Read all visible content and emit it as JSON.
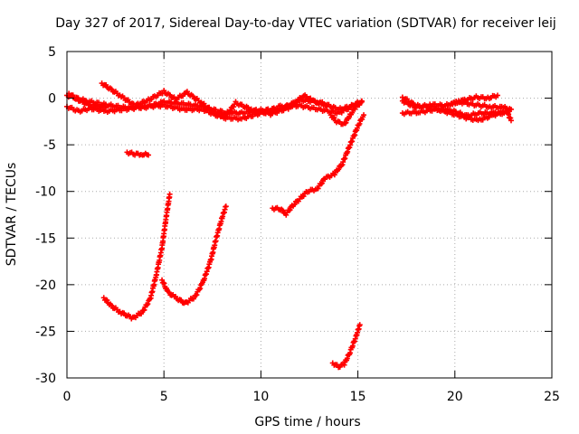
{
  "chart_data": {
    "type": "scatter",
    "title": "Day 327 of 2017, Sidereal Day-to-day VTEC variation (SDTVAR) for receiver leij",
    "xlabel": "GPS time / hours",
    "ylabel": "SDTVAR / TECUs",
    "xlim": [
      0,
      25
    ],
    "ylim": [
      -30,
      5
    ],
    "x_ticks": [
      0,
      5,
      10,
      15,
      20,
      25
    ],
    "y_ticks": [
      5,
      0,
      -5,
      -10,
      -15,
      -20,
      -25,
      -30
    ],
    "x_tick_labels": [
      "0",
      "5",
      "10",
      "15",
      "20",
      "25"
    ],
    "y_tick_labels": [
      "5",
      "0",
      "-5",
      "-10",
      "-15",
      "-20",
      "-25",
      "-30"
    ],
    "grid": true,
    "marker_color": "#ff0000",
    "series": [
      {
        "points": [
          [
            0.0,
            0.3
          ],
          [
            1.0,
            -0.3
          ],
          [
            2.0,
            -0.7
          ],
          [
            3.0,
            -1.0
          ],
          [
            4.0,
            -1.0
          ],
          [
            5.0,
            -0.4
          ],
          [
            6.0,
            -0.6
          ],
          [
            7.0,
            -0.9
          ],
          [
            8.0,
            -1.5
          ],
          [
            9.0,
            -1.6
          ],
          [
            10.0,
            -1.3
          ],
          [
            11.0,
            -1.2
          ],
          [
            12.0,
            -0.2
          ],
          [
            13.0,
            -0.4
          ],
          [
            14.0,
            -1.2
          ],
          [
            14.6,
            -0.9
          ],
          [
            15.2,
            -0.3
          ]
        ]
      },
      {
        "points": [
          [
            0.0,
            -0.9
          ],
          [
            0.6,
            -1.4
          ],
          [
            1.2,
            -1.1
          ],
          [
            2.0,
            -1.4
          ],
          [
            3.0,
            -1.2
          ],
          [
            4.0,
            -0.9
          ],
          [
            5.0,
            -0.8
          ],
          [
            6.0,
            -1.2
          ],
          [
            7.0,
            -1.2
          ],
          [
            8.0,
            -2.1
          ],
          [
            9.0,
            -2.2
          ],
          [
            10.0,
            -1.6
          ],
          [
            11.0,
            -0.9
          ],
          [
            12.0,
            -0.8
          ],
          [
            13.0,
            -1.2
          ],
          [
            14.0,
            -1.6
          ],
          [
            15.0,
            -0.6
          ]
        ]
      },
      {
        "points": [
          [
            1.8,
            1.6
          ],
          [
            2.3,
            0.9
          ],
          [
            2.8,
            0.2
          ],
          [
            3.5,
            -0.8
          ],
          [
            4.2,
            -0.2
          ],
          [
            5.0,
            0.7
          ],
          [
            5.6,
            -0.1
          ],
          [
            6.2,
            0.6
          ],
          [
            7.0,
            -0.6
          ],
          [
            7.6,
            -1.6
          ],
          [
            8.2,
            -1.9
          ],
          [
            8.7,
            -0.5
          ],
          [
            9.5,
            -1.2
          ],
          [
            10.5,
            -1.7
          ],
          [
            11.5,
            -1.0
          ],
          [
            12.2,
            0.3
          ],
          [
            12.7,
            -0.3
          ],
          [
            13.4,
            -0.8
          ]
        ]
      },
      {
        "points": [
          [
            0.1,
            0.5
          ],
          [
            0.6,
            -0.2
          ],
          [
            1.2,
            -0.8
          ],
          [
            2.0,
            -1.0
          ]
        ]
      },
      {
        "points": [
          [
            3.1,
            -5.8
          ],
          [
            3.5,
            -6.0
          ],
          [
            3.9,
            -6.0
          ],
          [
            4.2,
            -6.1
          ]
        ]
      },
      {
        "points": [
          [
            1.9,
            -21.4
          ],
          [
            2.3,
            -22.3
          ],
          [
            2.8,
            -23.0
          ],
          [
            3.4,
            -23.6
          ],
          [
            3.9,
            -22.9
          ],
          [
            4.3,
            -21.5
          ],
          [
            4.6,
            -19.0
          ],
          [
            4.9,
            -16.0
          ],
          [
            5.1,
            -13.0
          ],
          [
            5.3,
            -10.3
          ]
        ]
      },
      {
        "points": [
          [
            4.9,
            -19.5
          ],
          [
            5.2,
            -20.8
          ],
          [
            5.6,
            -21.4
          ],
          [
            6.1,
            -22.0
          ],
          [
            6.6,
            -21.3
          ],
          [
            7.0,
            -19.8
          ],
          [
            7.4,
            -17.5
          ],
          [
            7.7,
            -15.0
          ],
          [
            8.0,
            -12.8
          ],
          [
            8.2,
            -11.6
          ]
        ]
      },
      {
        "points": [
          [
            10.6,
            -11.8
          ],
          [
            11.0,
            -11.9
          ],
          [
            11.3,
            -12.4
          ],
          [
            11.6,
            -11.6
          ],
          [
            12.0,
            -10.8
          ],
          [
            12.4,
            -10.0
          ],
          [
            12.9,
            -9.7
          ],
          [
            13.3,
            -8.6
          ],
          [
            13.8,
            -8.1
          ],
          [
            14.2,
            -7.0
          ],
          [
            14.6,
            -5.0
          ],
          [
            15.0,
            -3.0
          ],
          [
            15.3,
            -1.8
          ]
        ]
      },
      {
        "points": [
          [
            13.6,
            -1.8
          ],
          [
            13.9,
            -2.5
          ],
          [
            14.3,
            -2.8
          ],
          [
            14.6,
            -1.8
          ],
          [
            14.9,
            -0.9
          ],
          [
            15.2,
            -0.4
          ]
        ]
      },
      {
        "points": [
          [
            13.7,
            -28.4
          ],
          [
            14.0,
            -28.8
          ],
          [
            14.3,
            -28.5
          ],
          [
            14.6,
            -27.2
          ],
          [
            14.9,
            -25.6
          ],
          [
            15.1,
            -24.3
          ]
        ]
      },
      {
        "points": [
          [
            17.3,
            -0.3
          ],
          [
            18.0,
            -1.0
          ],
          [
            18.8,
            -0.7
          ],
          [
            19.5,
            -0.8
          ],
          [
            20.2,
            -0.4
          ],
          [
            21.0,
            -0.7
          ],
          [
            21.8,
            -0.9
          ],
          [
            22.5,
            -1.0
          ],
          [
            22.9,
            -1.2
          ]
        ]
      },
      {
        "points": [
          [
            17.3,
            -1.6
          ],
          [
            18.2,
            -1.5
          ],
          [
            19.0,
            -1.2
          ],
          [
            19.8,
            -1.3
          ],
          [
            20.6,
            -1.9
          ],
          [
            21.3,
            -1.6
          ],
          [
            22.0,
            -1.6
          ],
          [
            22.8,
            -1.4
          ]
        ]
      },
      {
        "points": [
          [
            17.3,
            0.1
          ],
          [
            18.0,
            -0.8
          ],
          [
            18.8,
            -1.0
          ],
          [
            19.6,
            -1.5
          ],
          [
            20.4,
            -2.0
          ],
          [
            21.2,
            -2.4
          ],
          [
            22.0,
            -1.8
          ],
          [
            22.7,
            -1.5
          ],
          [
            22.9,
            -2.4
          ]
        ]
      },
      {
        "points": [
          [
            19.8,
            -0.6
          ],
          [
            20.5,
            -0.2
          ],
          [
            21.1,
            0.1
          ],
          [
            21.7,
            0.0
          ],
          [
            22.2,
            0.3
          ]
        ]
      }
    ]
  }
}
